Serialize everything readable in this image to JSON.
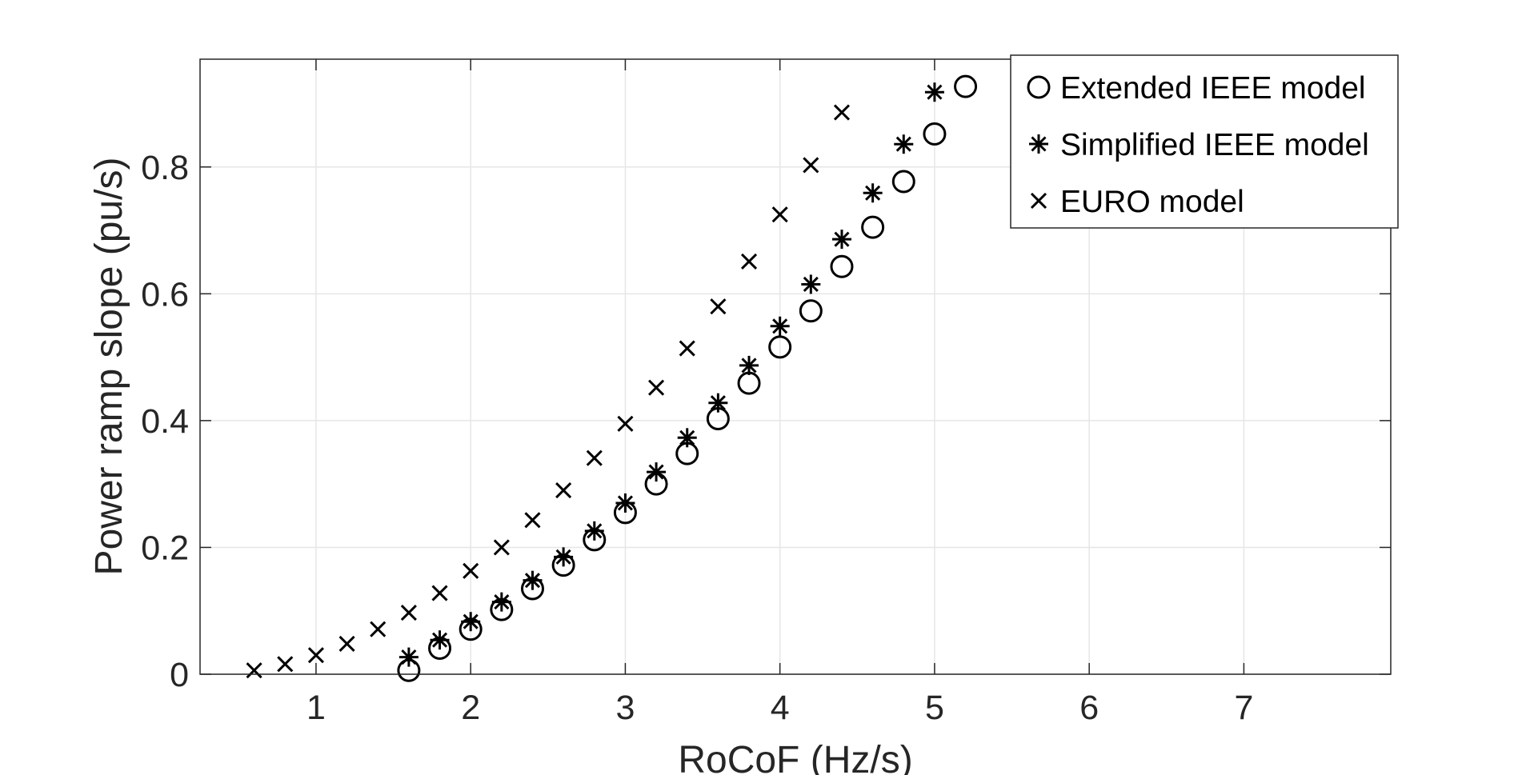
{
  "chart_data": {
    "type": "scatter",
    "xlabel": "RoCoF (Hz/s)",
    "ylabel": "Power ramp slope (pu/s)",
    "xlim": [
      0.25,
      7.95
    ],
    "ylim": [
      0,
      0.97
    ],
    "xticks": [
      1,
      2,
      3,
      4,
      5,
      6,
      7
    ],
    "yticks": [
      0,
      0.2,
      0.4,
      0.6,
      0.8
    ],
    "xtick_labels": [
      "1",
      "2",
      "3",
      "4",
      "5",
      "6",
      "7"
    ],
    "ytick_labels": [
      "0",
      "0.2",
      "0.4",
      "0.6",
      "0.8"
    ],
    "grid": true,
    "legend_position": "top-right",
    "series": [
      {
        "name": "Extended IEEE model",
        "marker": "circle",
        "color": "#000000",
        "x": [
          1.6,
          1.8,
          2.0,
          2.2,
          2.4,
          2.6,
          2.8,
          3.0,
          3.2,
          3.4,
          3.6,
          3.8,
          4.0,
          4.2,
          4.4,
          4.6,
          4.8,
          5.0,
          5.2
        ],
        "y": [
          0.006,
          0.041,
          0.071,
          0.102,
          0.135,
          0.172,
          0.212,
          0.255,
          0.3,
          0.348,
          0.403,
          0.459,
          0.516,
          0.573,
          0.643,
          0.705,
          0.777,
          0.852,
          0.927
        ]
      },
      {
        "name": "Simplified IEEE model",
        "marker": "asterisk",
        "color": "#000000",
        "x": [
          1.6,
          1.8,
          2.0,
          2.2,
          2.4,
          2.6,
          2.8,
          3.0,
          3.2,
          3.4,
          3.6,
          3.8,
          4.0,
          4.2,
          4.4,
          4.6,
          4.8,
          5.0
        ],
        "y": [
          0.027,
          0.054,
          0.083,
          0.114,
          0.148,
          0.185,
          0.226,
          0.27,
          0.319,
          0.373,
          0.428,
          0.487,
          0.549,
          0.615,
          0.686,
          0.759,
          0.836,
          0.918
        ]
      },
      {
        "name": "EURO model",
        "marker": "x",
        "color": "#000000",
        "x": [
          0.6,
          0.8,
          1.0,
          1.2,
          1.4,
          1.6,
          1.8,
          2.0,
          2.2,
          2.4,
          2.6,
          2.8,
          3.0,
          3.2,
          3.4,
          3.6,
          3.8,
          4.0,
          4.2,
          4.4
        ],
        "y": [
          0.006,
          0.016,
          0.03,
          0.048,
          0.071,
          0.097,
          0.128,
          0.163,
          0.2,
          0.243,
          0.29,
          0.341,
          0.395,
          0.452,
          0.514,
          0.58,
          0.651,
          0.725,
          0.803,
          0.886
        ]
      }
    ]
  }
}
